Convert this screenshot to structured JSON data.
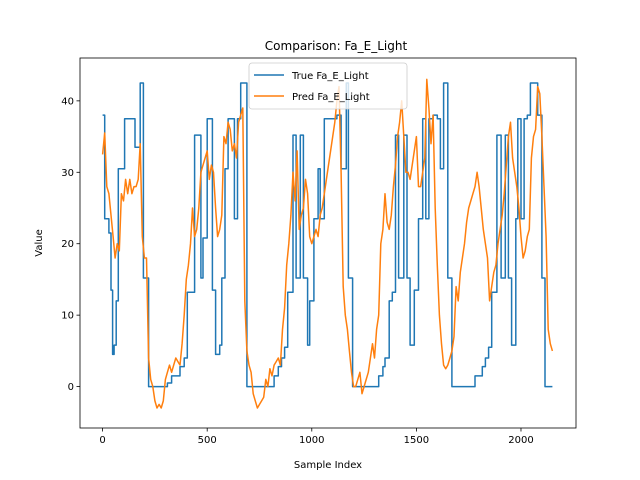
{
  "chart_data": {
    "type": "line",
    "title": "Comparison: Fa_E_Light",
    "xlabel": "Sample Index",
    "ylabel": "Value",
    "xlim": [
      -108,
      2263
    ],
    "ylim": [
      -5.8,
      46.0
    ],
    "xticks": [
      0,
      500,
      1000,
      1500,
      2000
    ],
    "yticks": [
      0,
      10,
      20,
      30,
      40
    ],
    "legend": "top-center",
    "colors": {
      "true": "#1f77b4",
      "pred": "#ff7f0e"
    },
    "series": [
      {
        "name": "True Fa_E_Light",
        "step": true,
        "x": [
          0,
          10,
          20,
          30,
          40,
          48,
          55,
          65,
          75,
          90,
          105,
          120,
          155,
          170,
          180,
          195,
          210,
          220,
          230,
          250,
          270,
          290,
          310,
          330,
          350,
          370,
          390,
          405,
          420,
          440,
          455,
          470,
          480,
          500,
          510,
          525,
          540,
          560,
          570,
          585,
          600,
          615,
          630,
          645,
          660,
          690,
          700,
          720,
          740,
          760,
          780,
          800,
          820,
          830,
          840,
          855,
          870,
          885,
          900,
          910,
          925,
          945,
          960,
          980,
          990,
          1010,
          1030,
          1040,
          1060,
          1080,
          1100,
          1120,
          1140,
          1165,
          1175,
          1195,
          1210,
          1230,
          1240,
          1260,
          1280,
          1300,
          1320,
          1340,
          1350,
          1370,
          1385,
          1400,
          1415,
          1440,
          1455,
          1470,
          1490,
          1510,
          1530,
          1545,
          1560,
          1580,
          1600,
          1615,
          1630,
          1650,
          1670,
          1690,
          1710,
          1730,
          1750,
          1780,
          1800,
          1815,
          1830,
          1845,
          1860,
          1870,
          1885,
          1905,
          1925,
          1940,
          1955,
          1975,
          1985,
          2000,
          2015,
          2030,
          2045,
          2060,
          2080,
          2100,
          2115,
          2130,
          2150
        ],
        "values": [
          38,
          23.5,
          23.5,
          21.5,
          13.5,
          4.5,
          5.8,
          12,
          30.5,
          30.5,
          37.5,
          37.5,
          33.5,
          33.5,
          42.5,
          15.2,
          15.2,
          0,
          0,
          0,
          0,
          0,
          0.5,
          1.5,
          1.5,
          2.8,
          4,
          13.2,
          13.2,
          35.2,
          35.2,
          15.2,
          20.8,
          37.5,
          37.5,
          13.5,
          4.5,
          5.8,
          15.2,
          30.5,
          37.5,
          37.5,
          23.5,
          37.5,
          42.5,
          0,
          0,
          0,
          0,
          0,
          0,
          0,
          1.5,
          1.5,
          2.8,
          4,
          5.5,
          13.2,
          13.2,
          35.2,
          15.2,
          35.2,
          15.2,
          5.8,
          12,
          23.5,
          30.5,
          23.5,
          37.5,
          37.5,
          37.5,
          38,
          30.5,
          42.5,
          15.2,
          0,
          0,
          0,
          0,
          0,
          0,
          0,
          1.5,
          2.8,
          4,
          12,
          13.2,
          35.2,
          15.2,
          35.2,
          15.2,
          5.8,
          13.5,
          23.5,
          37.5,
          23.5,
          37.5,
          38,
          37.5,
          30.5,
          42.5,
          15.2,
          0,
          0,
          0,
          0,
          0,
          1.5,
          1.5,
          2.8,
          4,
          5.5,
          13.2,
          13.2,
          35.2,
          15.2,
          35.2,
          15.2,
          5.8,
          23.5,
          37.5,
          23.5,
          37.5,
          38,
          42.5,
          42.5,
          38,
          15.2,
          0,
          0,
          0
        ]
      },
      {
        "name": "Pred Fa_E_Light",
        "x": [
          0,
          10,
          20,
          30,
          40,
          50,
          60,
          70,
          80,
          90,
          100,
          110,
          120,
          130,
          140,
          150,
          160,
          170,
          180,
          190,
          200,
          210,
          220,
          230,
          240,
          250,
          260,
          270,
          280,
          290,
          300,
          310,
          320,
          330,
          340,
          350,
          360,
          370,
          380,
          390,
          400,
          410,
          420,
          430,
          440,
          450,
          460,
          470,
          480,
          490,
          500,
          510,
          520,
          530,
          540,
          550,
          560,
          570,
          580,
          590,
          600,
          610,
          620,
          630,
          640,
          650,
          660,
          670,
          680,
          690,
          700,
          710,
          720,
          730,
          740,
          750,
          760,
          770,
          780,
          790,
          800,
          810,
          820,
          830,
          840,
          850,
          860,
          870,
          880,
          890,
          900,
          910,
          920,
          930,
          940,
          950,
          960,
          970,
          980,
          990,
          1000,
          1010,
          1020,
          1030,
          1040,
          1050,
          1060,
          1070,
          1080,
          1090,
          1100,
          1110,
          1120,
          1130,
          1140,
          1150,
          1160,
          1170,
          1180,
          1190,
          1200,
          1210,
          1220,
          1230,
          1240,
          1250,
          1260,
          1270,
          1280,
          1290,
          1300,
          1310,
          1320,
          1330,
          1340,
          1350,
          1360,
          1370,
          1380,
          1390,
          1400,
          1410,
          1420,
          1430,
          1440,
          1450,
          1460,
          1470,
          1480,
          1490,
          1500,
          1510,
          1520,
          1530,
          1540,
          1550,
          1560,
          1570,
          1580,
          1590,
          1600,
          1610,
          1620,
          1630,
          1640,
          1650,
          1660,
          1670,
          1680,
          1690,
          1700,
          1710,
          1720,
          1730,
          1740,
          1750,
          1760,
          1770,
          1780,
          1790,
          1800,
          1810,
          1820,
          1830,
          1840,
          1850,
          1860,
          1870,
          1880,
          1890,
          1900,
          1910,
          1920,
          1930,
          1940,
          1950,
          1960,
          1970,
          1980,
          1990,
          2000,
          2010,
          2020,
          2030,
          2040,
          2050,
          2060,
          2070,
          2080,
          2090,
          2100,
          2110,
          2120,
          2130,
          2140,
          2150
        ],
        "values": [
          32.5,
          35.5,
          28,
          27,
          24,
          21,
          18,
          20,
          19,
          27,
          26,
          29,
          27,
          29,
          27,
          28,
          28,
          29,
          34,
          21,
          18,
          18,
          4,
          1,
          0,
          -2,
          -3,
          -2.5,
          -3,
          -2,
          1,
          2,
          3,
          2,
          3,
          4,
          3.5,
          3,
          6,
          10,
          15,
          17,
          20,
          25,
          21,
          22,
          25,
          30,
          31,
          32,
          33,
          29,
          31,
          30,
          25,
          21,
          22,
          24,
          35,
          34,
          37,
          36,
          33,
          34,
          32,
          37,
          38,
          39,
          12,
          5,
          3,
          2,
          -1,
          -2,
          -3,
          -2.5,
          -2,
          -1.5,
          1,
          0,
          2.5,
          1.5,
          3,
          3.5,
          4,
          3,
          8,
          11,
          17,
          20,
          24,
          30,
          26,
          33,
          22,
          24,
          25,
          29,
          27,
          21,
          20,
          21,
          22,
          21,
          24,
          25,
          27,
          29,
          31,
          33,
          35,
          37,
          40,
          42,
          30,
          14,
          10,
          8,
          5,
          2,
          0,
          0,
          1,
          2,
          -1,
          0,
          1,
          2,
          4,
          6,
          4,
          8,
          10,
          20,
          22,
          27,
          23,
          22,
          24,
          28,
          31,
          35,
          37,
          40,
          35,
          30,
          30,
          29,
          31,
          33,
          35,
          28,
          28,
          30,
          32,
          43,
          39,
          34,
          38,
          25,
          17,
          10,
          6,
          3,
          2.5,
          3,
          4,
          5,
          7,
          14,
          12,
          16,
          18,
          20,
          23,
          25,
          26,
          27,
          28,
          30,
          28,
          25,
          22,
          20,
          18,
          12,
          14,
          16,
          17,
          20,
          22,
          24,
          27,
          31,
          35,
          37,
          32,
          30,
          28,
          25,
          21,
          18,
          19,
          21,
          22,
          32,
          35,
          36,
          42,
          41,
          35,
          28,
          21,
          8,
          6,
          5
        ]
      }
    ]
  }
}
